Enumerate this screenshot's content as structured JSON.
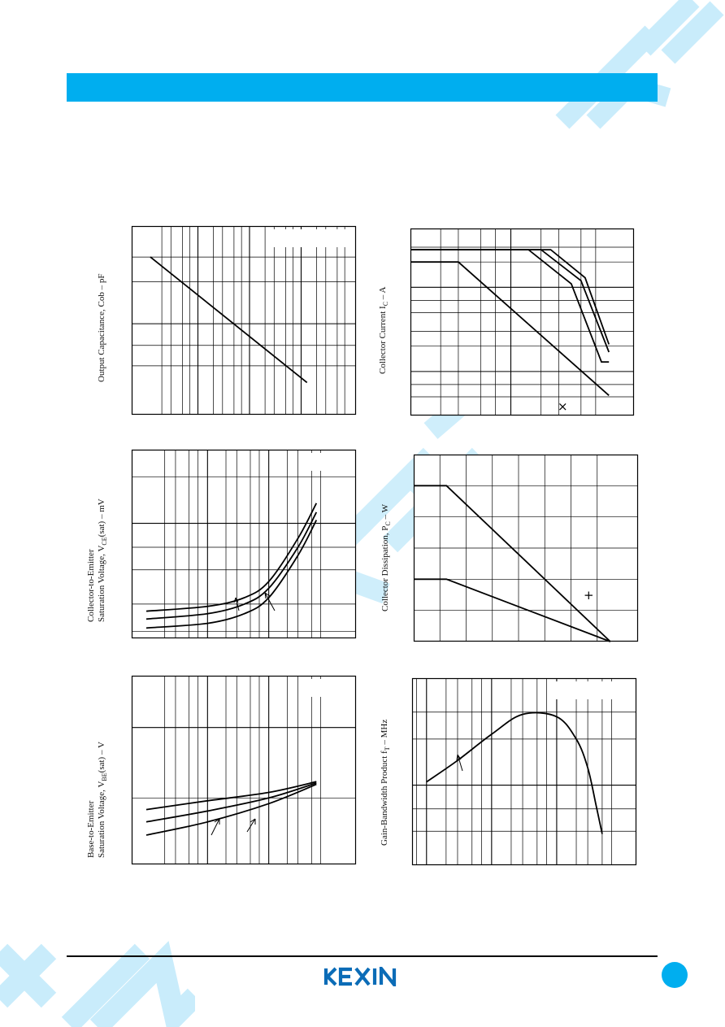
{
  "brand": {
    "logo_text": "KEXIN",
    "accent_color": "#00aeef",
    "watermark_color": "#c9ecfb"
  },
  "chart_data": [
    {
      "id": "cob",
      "type": "line",
      "y_axis_label": "Output Capacitance, Cob  –  pF",
      "x_scale": "log",
      "y_scale": "log",
      "grid": true,
      "series": [
        {
          "x": [
            0.12,
            130
          ],
          "y": [
            3.0,
            0.38
          ]
        }
      ]
    },
    {
      "id": "soa",
      "type": "line",
      "y_axis_label": "Collector Current I",
      "y_axis_label_sub": "C",
      "y_axis_label_tail": "  –  A",
      "x_scale": "log",
      "y_scale": "log",
      "grid": true,
      "annotations": [
        "×"
      ],
      "series": [
        {
          "x": [
            1,
            15,
            40,
            80,
            95
          ],
          "y": [
            2.8,
            2.8,
            1.1,
            0.13,
            0.13
          ]
        },
        {
          "x": [
            1,
            20,
            50,
            95
          ],
          "y": [
            2.8,
            2.8,
            1.2,
            0.17
          ]
        },
        {
          "x": [
            1,
            25,
            55,
            95
          ],
          "y": [
            2.8,
            2.8,
            1.3,
            0.21
          ]
        },
        {
          "x": [
            1,
            3,
            95
          ],
          "y": [
            2.0,
            2.0,
            0.052
          ]
        }
      ]
    },
    {
      "id": "vcesat",
      "type": "line",
      "y_axis_label_line1": "Collector-to-Emitter",
      "y_axis_label_line2": "Saturation Voltage, V",
      "y_axis_label_sub": "CE",
      "y_axis_label_tail": "(sat)  –  mV",
      "x_scale": "log",
      "y_scale": "log",
      "grid": true,
      "series": [
        {
          "x": [
            0.01,
            0.1,
            0.4,
            1,
            3,
            6
          ],
          "y": [
            27,
            29,
            33,
            42,
            80,
            135
          ]
        },
        {
          "x": [
            0.01,
            0.1,
            0.4,
            1,
            3,
            6
          ],
          "y": [
            24,
            26,
            30,
            38,
            70,
            118
          ]
        },
        {
          "x": [
            0.01,
            0.1,
            0.4,
            1,
            3,
            6
          ],
          "y": [
            21,
            22.5,
            26,
            33,
            62,
            105
          ]
        }
      ]
    },
    {
      "id": "pd",
      "type": "line",
      "y_axis_label": "Collector Dissipation, P",
      "y_axis_label_sub": "C",
      "y_axis_label_tail": "  –  W",
      "x_scale": "linear",
      "y_scale": "linear",
      "grid": true,
      "annotations": [
        "+"
      ],
      "series": [
        {
          "x": [
            0,
            25,
            150
          ],
          "y": [
            0.5,
            0.5,
            0
          ]
        },
        {
          "x": [
            0,
            25,
            150
          ],
          "y": [
            0.2,
            0.2,
            0
          ]
        }
      ]
    },
    {
      "id": "vbesat",
      "type": "line",
      "y_axis_label_line1": "Base-to-Emitter",
      "y_axis_label_line2": "Saturation Voltage, V",
      "y_axis_label_sub": "BE",
      "y_axis_label_tail": "(sat)  –  V",
      "x_scale": "log",
      "y_scale": "log",
      "grid": true,
      "series": [
        {
          "x": [
            0.01,
            0.1,
            1,
            6
          ],
          "y": [
            0.66,
            0.69,
            0.72,
            0.76
          ]
        },
        {
          "x": [
            0.01,
            0.1,
            1,
            6
          ],
          "y": [
            0.62,
            0.655,
            0.7,
            0.755
          ]
        },
        {
          "x": [
            0.01,
            0.1,
            1,
            6
          ],
          "y": [
            0.58,
            0.62,
            0.68,
            0.75
          ]
        }
      ]
    },
    {
      "id": "ft",
      "type": "line",
      "y_axis_label": "Gain-Bandwidth Product f",
      "y_axis_label_sub": "T",
      "y_axis_label_tail": "  –  MHz",
      "x_scale": "log",
      "y_scale": "log",
      "grid": true,
      "series": [
        {
          "x": [
            0.01,
            0.03,
            0.1,
            0.3,
            1,
            2,
            3,
            4,
            5
          ],
          "y": [
            105,
            145,
            215,
            290,
            280,
            200,
            130,
            75,
            48
          ]
        }
      ]
    }
  ]
}
